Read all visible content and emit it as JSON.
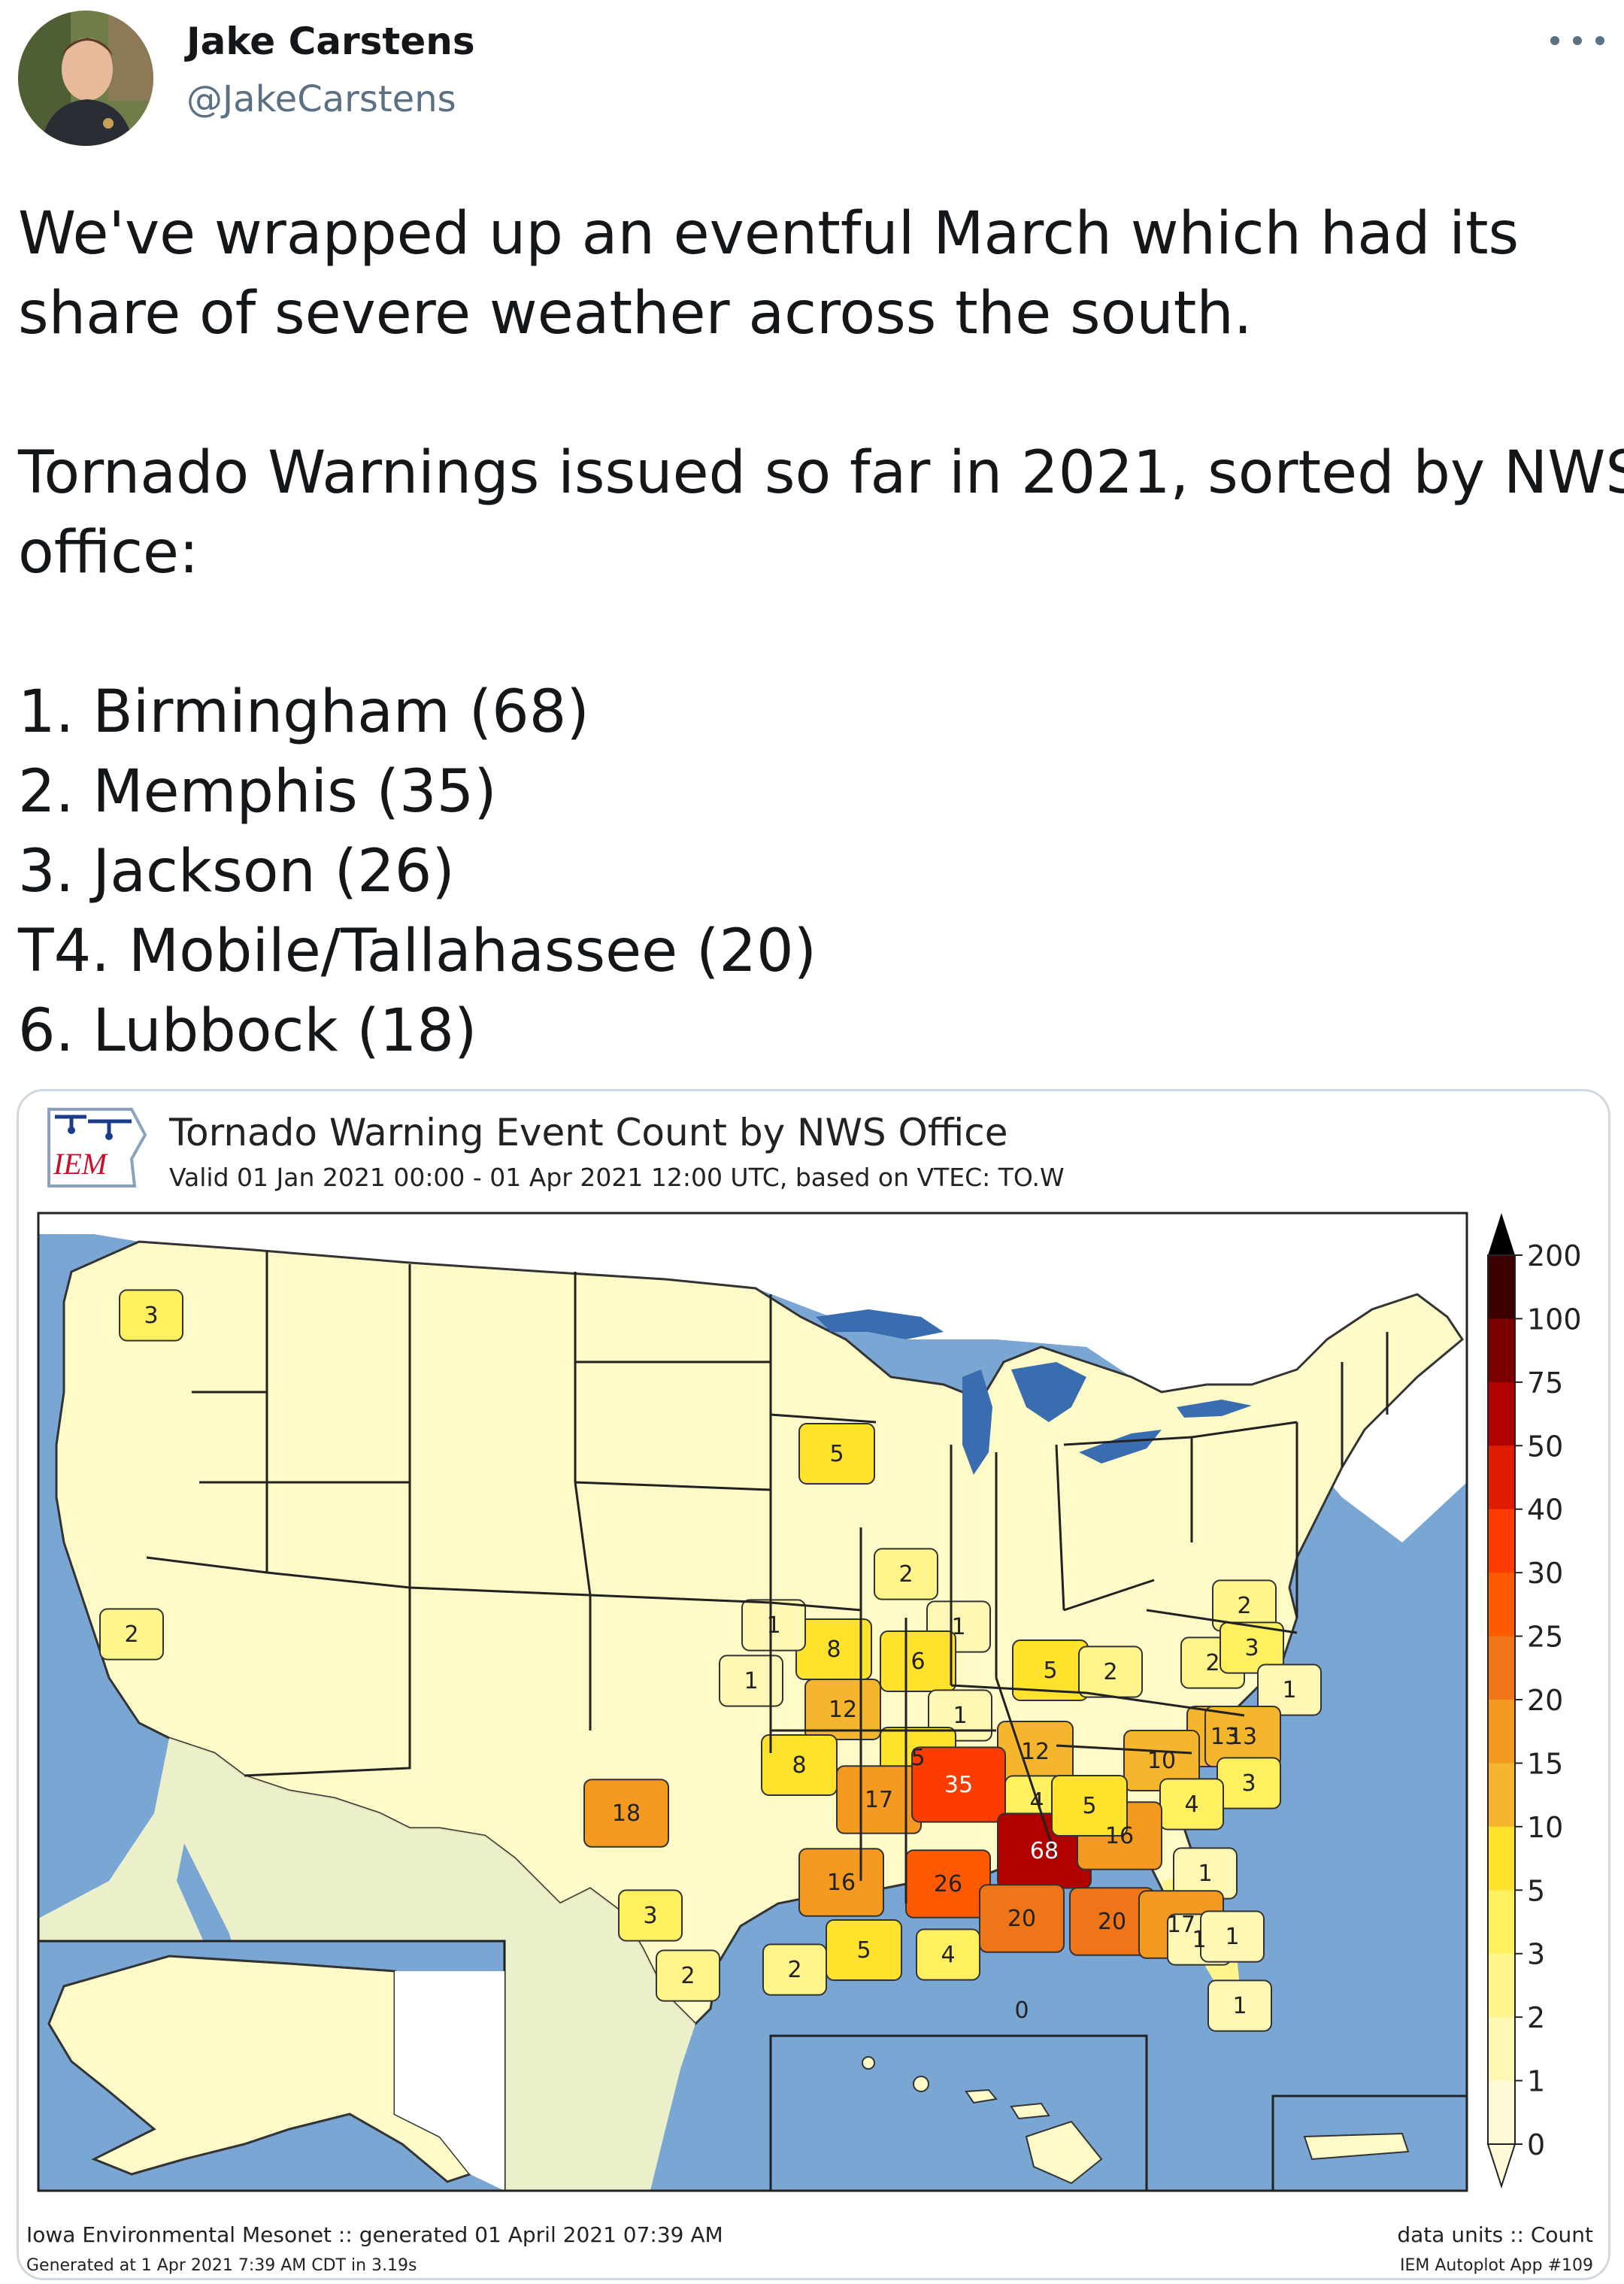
{
  "tweet": {
    "author": {
      "name": "Jake Carstens",
      "handle": "@JakeCarstens"
    },
    "more_icon": "more-horizontal-icon",
    "text": {
      "intro_line1": "We've wrapped up an eventful March which had its",
      "intro_line2": "share of severe weather across the south.",
      "lead_line1": "Tornado Warnings issued so far in 2021, sorted by NWS",
      "lead_line2": "office:",
      "rankings": [
        "1. Birmingham (68)",
        "2. Memphis (35)",
        "3. Jackson (26)",
        "T4. Mobile/Tallahassee (20)",
        "6. Lubbock (18)"
      ]
    }
  },
  "chart_image": {
    "logo_text": "IEM",
    "title": "Tornado Warning Event Count by NWS Office",
    "subtitle": "Valid 01 Jan 2021 00:00 - 01 Apr 2021 12:00 UTC, based on VTEC: TO.W",
    "footer_left_1": "Iowa Environmental Mesonet :: generated 01 April 2021 07:39 AM",
    "footer_left_2": "Generated at 1 Apr 2021 7:39 AM CDT in 3.19s",
    "footer_right_1": "data units :: Count",
    "footer_right_2": "IEM Autoplot App #109",
    "colors": {
      "ocean": "#7aa6d4",
      "land_zero": "#fffbc8",
      "border": "#222222"
    },
    "colorbar": {
      "ticks": [
        "200",
        "100",
        "75",
        "50",
        "40",
        "30",
        "25",
        "20",
        "15",
        "10",
        "5",
        "3",
        "2",
        "1",
        "0"
      ],
      "colors": [
        "#3c0000",
        "#7a0000",
        "#b00000",
        "#dd1c00",
        "#ff3c00",
        "#ff5a00",
        "#f07418",
        "#f59a20",
        "#f5b52c",
        "#ffe22c",
        "#fff060",
        "#fff58a",
        "#fff8b4",
        "#fffbd8"
      ]
    },
    "chart_data": {
      "type": "choropleth-map",
      "title": "Tornado Warning Event Count by NWS Office",
      "units": "Count",
      "offices_labeled": [
        {
          "label": "3",
          "value": 3
        },
        {
          "label": "2",
          "value": 2
        },
        {
          "label": "5",
          "value": 5
        },
        {
          "label": "2",
          "value": 2
        },
        {
          "label": "1",
          "value": 1
        },
        {
          "label": "8",
          "value": 8
        },
        {
          "label": "6",
          "value": 6
        },
        {
          "label": "1",
          "value": 1
        },
        {
          "label": "1",
          "value": 1
        },
        {
          "label": "1",
          "value": 1
        },
        {
          "label": "12",
          "value": 12
        },
        {
          "label": "5",
          "value": 5
        },
        {
          "label": "2",
          "value": 2
        },
        {
          "label": "2",
          "value": 2
        },
        {
          "label": "2",
          "value": 2
        },
        {
          "label": "3",
          "value": 3
        },
        {
          "label": "1",
          "value": 1
        },
        {
          "label": "13",
          "value": 13
        },
        {
          "label": "8",
          "value": 8
        },
        {
          "label": "5",
          "value": 5
        },
        {
          "label": "12",
          "value": 12
        },
        {
          "label": "13",
          "value": 13
        },
        {
          "label": "10",
          "value": 10
        },
        {
          "label": "17",
          "value": 17
        },
        {
          "label": "35",
          "value": 35
        },
        {
          "label": "4",
          "value": 4
        },
        {
          "label": "3",
          "value": 3
        },
        {
          "label": "4",
          "value": 4
        },
        {
          "label": "18",
          "value": 18
        },
        {
          "label": "68",
          "value": 68
        },
        {
          "label": "16",
          "value": 16
        },
        {
          "label": "1",
          "value": 1
        },
        {
          "label": "5",
          "value": 5
        },
        {
          "label": "16",
          "value": 16
        },
        {
          "label": "26",
          "value": 26
        },
        {
          "label": "3",
          "value": 3
        },
        {
          "label": "20",
          "value": 20
        },
        {
          "label": "20",
          "value": 20
        },
        {
          "label": "17",
          "value": 17
        },
        {
          "label": "5",
          "value": 5
        },
        {
          "label": "4",
          "value": 4
        },
        {
          "label": "2",
          "value": 2
        },
        {
          "label": "2",
          "value": 2
        },
        {
          "label": "1",
          "value": 1
        },
        {
          "label": "1",
          "value": 1
        },
        {
          "label": "1",
          "value": 1
        },
        {
          "label": "0",
          "value": 0
        }
      ]
    }
  }
}
